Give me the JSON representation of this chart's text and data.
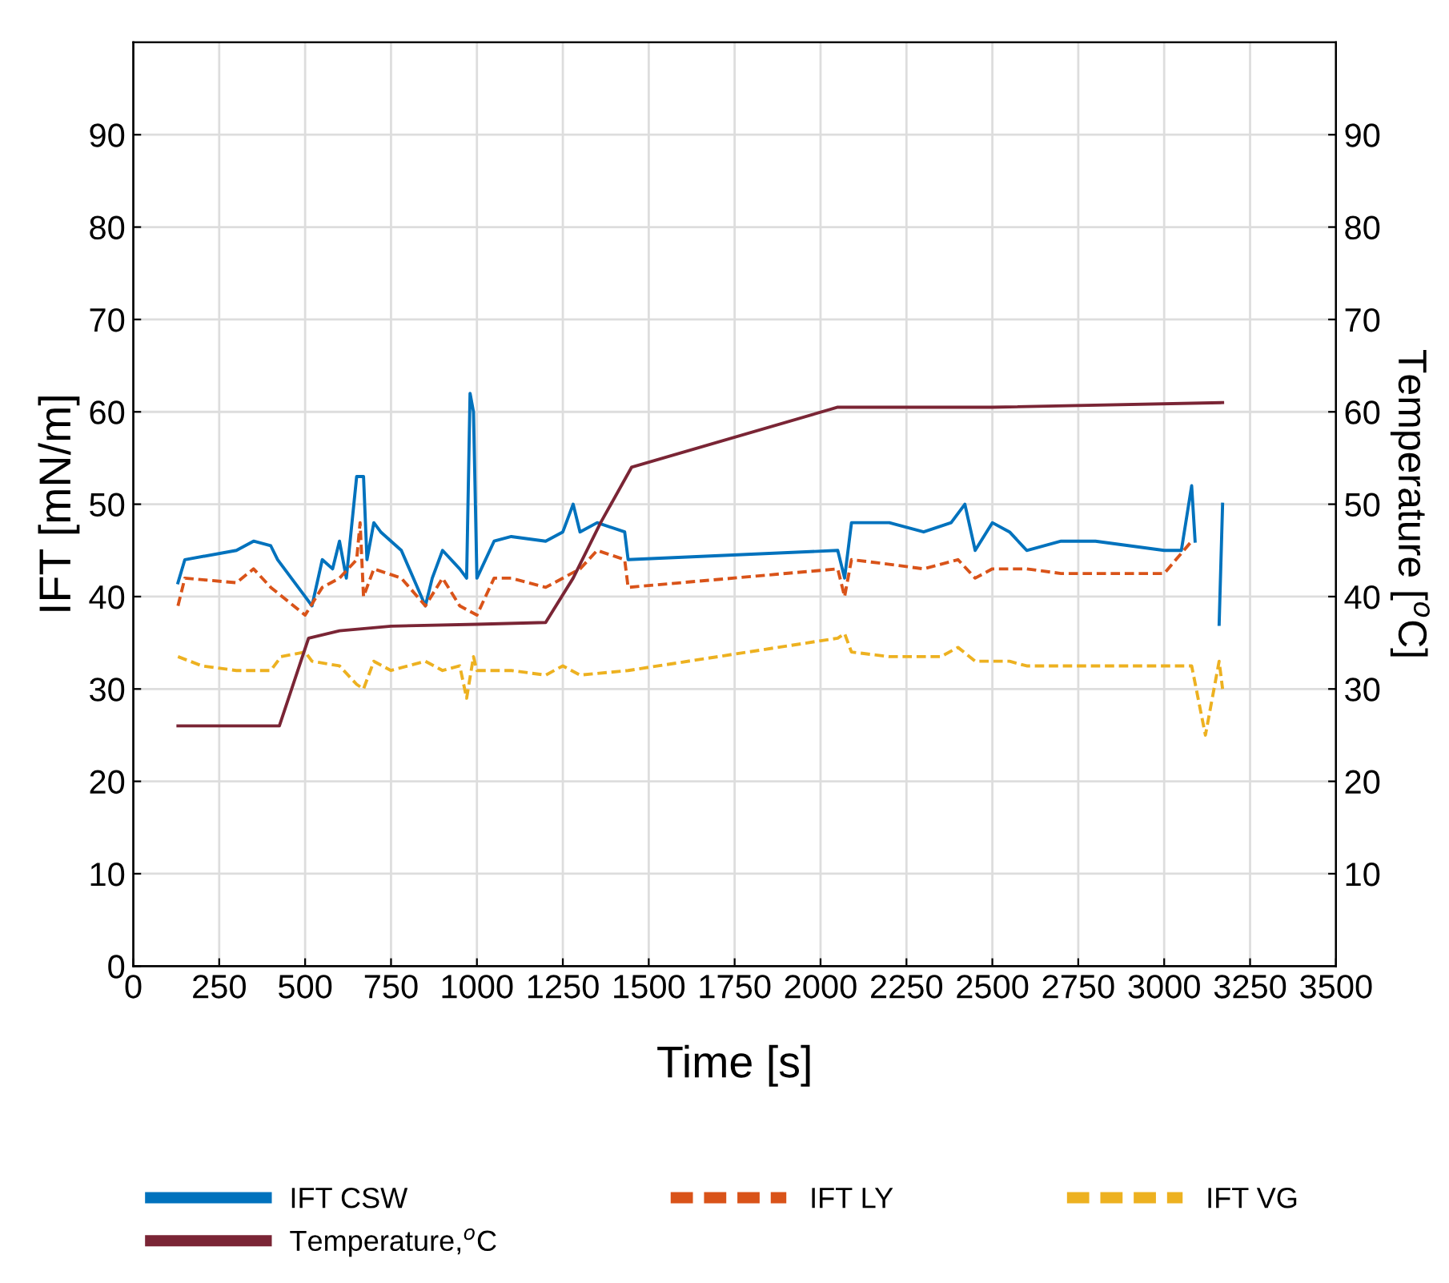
{
  "chart_data": {
    "type": "line",
    "xlabel": "Time [s]",
    "ylabel": "IFT [mN/m]",
    "y2label": "Temperature [$^{o}$C]",
    "xlim": [
      0,
      3500
    ],
    "xticks": [
      0,
      250,
      500,
      750,
      1000,
      1250,
      1500,
      1750,
      2000,
      2250,
      2500,
      2750,
      3000,
      3250,
      3500
    ],
    "ylim": [
      0,
      100
    ],
    "yticks": [
      0,
      10,
      20,
      30,
      40,
      50,
      60,
      70,
      80,
      90
    ],
    "y2lim": [
      0,
      100
    ],
    "y2ticks": [
      10,
      20,
      30,
      40,
      50,
      60,
      70,
      80,
      90
    ],
    "grid": true,
    "legend": "bottom",
    "series": [
      {
        "name": "IFT CSW",
        "color": "#0072bd",
        "line_style": "solid",
        "x": [
          130,
          150,
          300,
          350,
          400,
          420,
          500,
          520,
          550,
          580,
          600,
          620,
          650,
          670,
          680,
          700,
          720,
          780,
          850,
          870,
          900,
          950,
          970,
          980,
          990,
          1000,
          1050,
          1100,
          1200,
          1250,
          1280,
          1300,
          1350,
          1430,
          1440,
          2050,
          2070,
          2090,
          2200,
          2300,
          2380,
          2420,
          2450,
          2500,
          2550,
          2600,
          2700,
          2800,
          3000,
          3050,
          3080,
          3090,
          3120,
          3160,
          3170
        ],
        "values": [
          41.5,
          44,
          45,
          46,
          45.5,
          44,
          40,
          39,
          44,
          43,
          46,
          42,
          53,
          53,
          44,
          48,
          47,
          45,
          39,
          42,
          45,
          43,
          42,
          62,
          60,
          42,
          46,
          46.5,
          46,
          47,
          50,
          47,
          48,
          47,
          44,
          45,
          42,
          48,
          48,
          47,
          48,
          50,
          45,
          48,
          47,
          45,
          46,
          46,
          45,
          45,
          52,
          46,
          null,
          37,
          50
        ]
      },
      {
        "name": "IFT LY",
        "color": "#d95319",
        "line_style": "dashed",
        "x": [
          130,
          150,
          300,
          350,
          400,
          500,
          550,
          600,
          650,
          660,
          670,
          700,
          780,
          850,
          900,
          950,
          1000,
          1050,
          1100,
          1200,
          1300,
          1350,
          1430,
          1440,
          2050,
          2070,
          2090,
          2200,
          2300,
          2400,
          2450,
          2500,
          2600,
          2700,
          3000,
          3080
        ],
        "values": [
          39,
          42,
          41.5,
          43,
          41,
          38,
          41,
          42,
          44,
          48,
          40,
          43,
          42,
          39,
          42,
          39,
          38,
          42,
          42,
          41,
          43,
          45,
          44,
          41,
          43,
          40,
          44,
          43.5,
          43,
          44,
          42,
          43,
          43,
          42.5,
          42.5,
          46
        ]
      },
      {
        "name": "IFT VG",
        "color": "#edb120",
        "line_style": "dashed",
        "x": [
          130,
          200,
          300,
          400,
          430,
          500,
          520,
          600,
          650,
          670,
          700,
          750,
          850,
          900,
          950,
          970,
          990,
          1000,
          1100,
          1200,
          1250,
          1300,
          1440,
          2050,
          2070,
          2090,
          2200,
          2350,
          2400,
          2450,
          2550,
          2600,
          3000,
          3080,
          3120,
          3160,
          3170
        ],
        "values": [
          33.5,
          32.5,
          32,
          32,
          33.5,
          34,
          33,
          32.5,
          30.5,
          30,
          33,
          32,
          33,
          32,
          32.5,
          29,
          33.5,
          32,
          32,
          31.5,
          32.5,
          31.5,
          32,
          35.5,
          36,
          34,
          33.5,
          33.5,
          34.5,
          33,
          33,
          32.5,
          32.5,
          32.5,
          25,
          33,
          30
        ]
      },
      {
        "name": "Temperature,$^{o}$C",
        "color": "#7a2535",
        "line_style": "solid",
        "axis": "y2",
        "x": [
          130,
          425,
          510,
          600,
          750,
          1000,
          1200,
          1280,
          1360,
          1450,
          2050,
          2500,
          3170
        ],
        "values": [
          26,
          26,
          35.5,
          36.3,
          36.8,
          37,
          37.2,
          42,
          48,
          54,
          60.5,
          60.5,
          61
        ]
      }
    ]
  }
}
